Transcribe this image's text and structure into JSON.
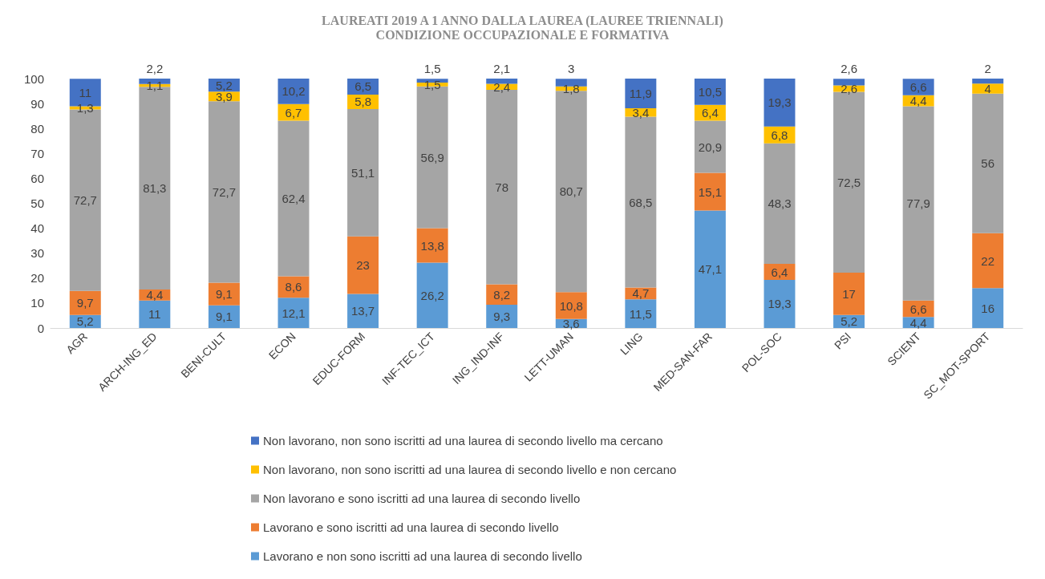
{
  "chart_data": {
    "type": "bar",
    "stacked": true,
    "title": "LAUREATI 2019 A 1 ANNO DALLA LAUREA (LAUREE TRIENNALI)",
    "subtitle": "CONDIZIONE OCCUPAZIONALE E FORMATIVA",
    "categories": [
      "AGR",
      "ARCH-ING_ED",
      "BENI-CULT",
      "ECON",
      "EDUC-FORM",
      "INF-TEC_ICT",
      "ING_IND-INF",
      "LETT-UMAN",
      "LING",
      "MED-SAN-FAR",
      "POL-SOC",
      "PSI",
      "SCIENT",
      "SC_MOT-SPORT"
    ],
    "series": [
      {
        "name": "Lavorano e non sono iscritti ad una laurea di secondo livello",
        "color": "#5b9bd5",
        "values": [
          5.2,
          11,
          9.1,
          12.1,
          13.7,
          26.2,
          9.3,
          3.6,
          11.5,
          47.1,
          19.3,
          5.2,
          4.4,
          16
        ],
        "value_labels": [
          "5,2",
          "11",
          "9,1",
          "12,1",
          "13,7",
          "26,2",
          "9,3",
          "3,6",
          "11,5",
          "47,1",
          "19,3",
          "5,2",
          "4,4",
          "16"
        ]
      },
      {
        "name": "Lavorano e sono iscritti ad una laurea di secondo livello",
        "color": "#ed7d31",
        "values": [
          9.7,
          4.4,
          9.1,
          8.6,
          23,
          13.8,
          8.2,
          10.8,
          4.7,
          15.1,
          6.4,
          17,
          6.6,
          22
        ],
        "value_labels": [
          "9,7",
          "4,4",
          "9,1",
          "8,6",
          "23",
          "13,8",
          "8,2",
          "10,8",
          "4,7",
          "15,1",
          "6,4",
          "17",
          "6,6",
          "22"
        ]
      },
      {
        "name": "Non lavorano e sono iscritti ad una laurea di secondo livello",
        "color": "#a5a5a5",
        "values": [
          72.7,
          81.3,
          72.7,
          62.4,
          51.1,
          56.9,
          78,
          80.7,
          68.5,
          20.9,
          48.3,
          72.5,
          77.9,
          56
        ],
        "value_labels": [
          "72,7",
          "81,3",
          "72,7",
          "62,4",
          "51,1",
          "56,9",
          "78",
          "80,7",
          "68,5",
          "20,9",
          "48,3",
          "72,5",
          "77,9",
          "56"
        ]
      },
      {
        "name": "Non lavorano, non sono iscritti ad una laurea di secondo livello e non cercano",
        "color": "#ffc000",
        "values": [
          1.3,
          1.1,
          3.9,
          6.7,
          5.8,
          1.5,
          2.4,
          1.8,
          3.4,
          6.4,
          6.8,
          2.6,
          4.4,
          4
        ],
        "value_labels": [
          "1,3",
          "1,1",
          "3,9",
          "6,7",
          "5,8",
          "1,5",
          "2,4",
          "1,8",
          "3,4",
          "6,4",
          "6,8",
          "2,6",
          "4,4",
          "4"
        ]
      },
      {
        "name": "Non lavorano, non sono iscritti ad una laurea di secondo livello ma cercano",
        "color": "#4472c4",
        "values": [
          11,
          2.2,
          5.2,
          10.2,
          6.5,
          1.5,
          2.1,
          3,
          11.9,
          10.5,
          19.3,
          2.6,
          6.6,
          2
        ],
        "value_labels": [
          "11",
          "2,2",
          "5,2",
          "10,2",
          "6,5",
          "1,5",
          "2,1",
          "3",
          "11,9",
          "10,5",
          "19,3",
          "2,6",
          "6,6",
          "2"
        ]
      }
    ],
    "ylim": [
      0,
      100
    ],
    "yticks": [
      0,
      10,
      20,
      30,
      40,
      50,
      60,
      70,
      80,
      90,
      100
    ],
    "grid": false,
    "legend": "bottom"
  }
}
